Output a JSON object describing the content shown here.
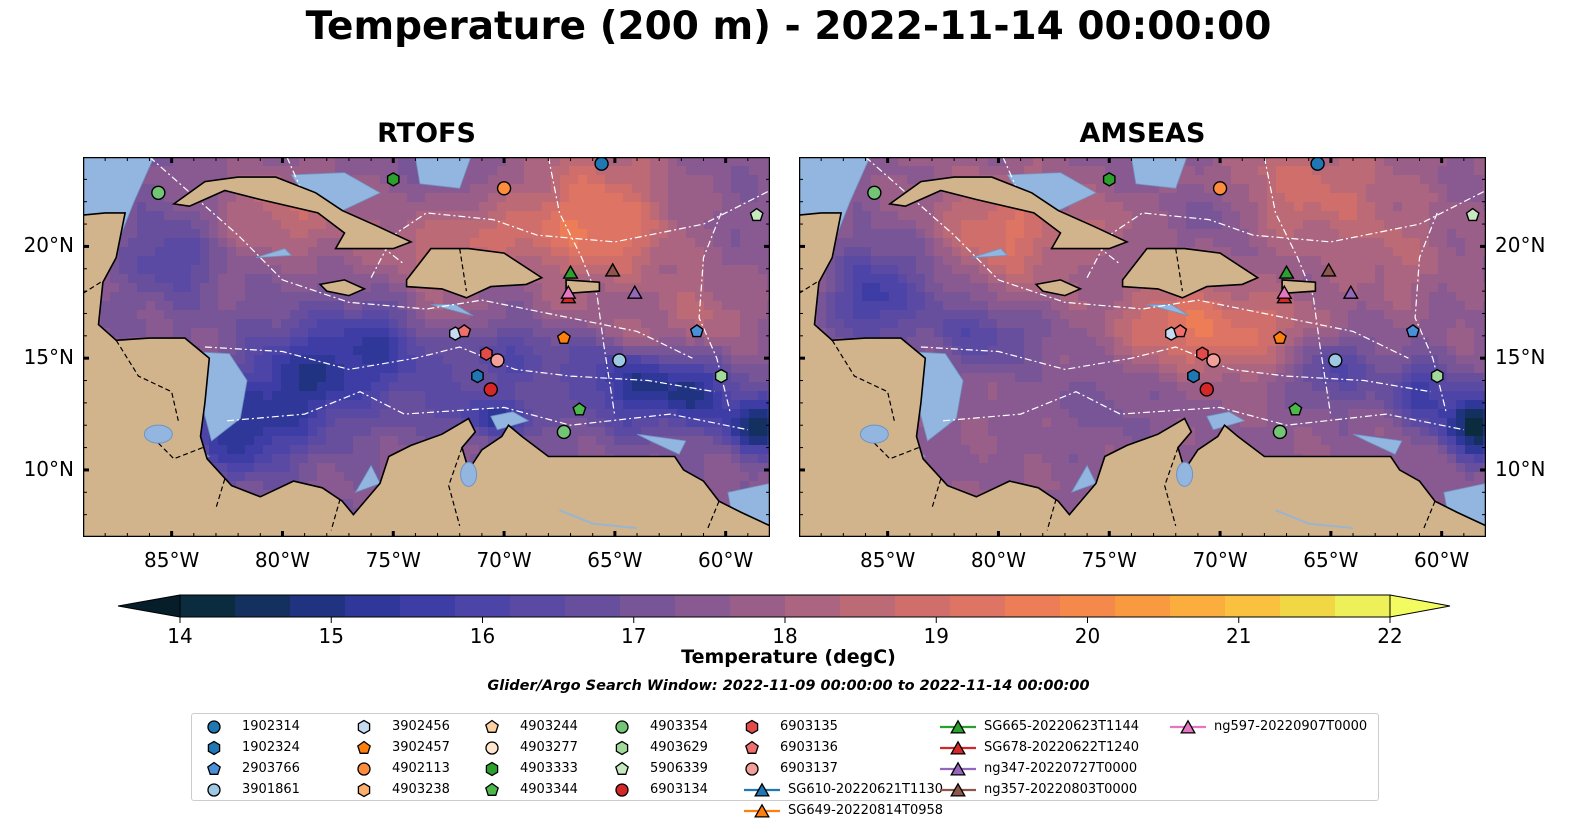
{
  "title": "Temperature (200 m) - 2022-11-14 00:00:00",
  "panels": [
    {
      "title": "RTOFS",
      "variant": "rtofs"
    },
    {
      "title": "AMSEAS",
      "variant": "amseas"
    }
  ],
  "axes": {
    "lon_ticks": [
      "85°W",
      "80°W",
      "75°W",
      "70°W",
      "65°W",
      "60°W"
    ],
    "lon_values": [
      -85,
      -80,
      -75,
      -70,
      -65,
      -60
    ],
    "lat_ticks": [
      "20°N",
      "15°N",
      "10°N"
    ],
    "lat_values": [
      20,
      15,
      10
    ],
    "lon_range": [
      -89,
      -58
    ],
    "lat_range": [
      7,
      24
    ]
  },
  "colorbar": {
    "label": "Temperature (degC)",
    "ticks": [
      "14",
      "15",
      "16",
      "17",
      "18",
      "19",
      "20",
      "21",
      "22"
    ],
    "tick_values": [
      14,
      15,
      16,
      17,
      18,
      19,
      20,
      21,
      22
    ],
    "range": [
      14,
      22
    ],
    "step": 0.5,
    "colors": [
      "#0b2c3e",
      "#13305f",
      "#1f3381",
      "#2f3799",
      "#3e3da6",
      "#4c44a7",
      "#5a4aa4",
      "#684f9e",
      "#775597",
      "#885a91",
      "#995f88",
      "#ab6580",
      "#bd6a77",
      "#cf6e6b",
      "#de7463",
      "#ec7d57",
      "#f5894b",
      "#f99a40",
      "#fbad3d",
      "#f9c13f",
      "#f2d744",
      "#eef05a"
    ],
    "extend_low_color": "#061e2a",
    "extend_high_color": "#f2fb60"
  },
  "search_window": "Glider/Argo Search Window: 2022-11-09 00:00:00 to 2022-11-14 00:00:00",
  "legend": {
    "items": [
      {
        "label": "1902314",
        "marker": "circle",
        "color": "#1f77b4"
      },
      {
        "label": "1902324",
        "marker": "hexagon",
        "color": "#1f77b4"
      },
      {
        "label": "2903766",
        "marker": "pentagon",
        "color": "#4a90d9"
      },
      {
        "label": "3901861",
        "marker": "circle",
        "color": "#9ecae1"
      },
      {
        "label": "3902456",
        "marker": "hexagon",
        "color": "#c6dbef"
      },
      {
        "label": "3902457",
        "marker": "pentagon",
        "color": "#ff7f0e"
      },
      {
        "label": "4902113",
        "marker": "circle",
        "color": "#fd8d3c"
      },
      {
        "label": "4903238",
        "marker": "hexagon",
        "color": "#fdae6b"
      },
      {
        "label": "4903244",
        "marker": "pentagon",
        "color": "#fdd0a2"
      },
      {
        "label": "4903277",
        "marker": "circle",
        "color": "#fee6ce"
      },
      {
        "label": "4903333",
        "marker": "hexagon",
        "color": "#2ca02c"
      },
      {
        "label": "4903344",
        "marker": "pentagon",
        "color": "#4cb84c"
      },
      {
        "label": "4903354",
        "marker": "circle",
        "color": "#74c476"
      },
      {
        "label": "4903629",
        "marker": "hexagon",
        "color": "#a1d99b"
      },
      {
        "label": "5906339",
        "marker": "pentagon",
        "color": "#c7e9c0"
      },
      {
        "label": "6903134",
        "marker": "circle",
        "color": "#d62728"
      },
      {
        "label": "6903135",
        "marker": "hexagon",
        "color": "#e34a4a"
      },
      {
        "label": "6903136",
        "marker": "pentagon",
        "color": "#ef6f6f"
      },
      {
        "label": "6903137",
        "marker": "circle",
        "color": "#f4a09a"
      },
      {
        "label": "SG610-20220621T1130",
        "marker": "triangle-line",
        "color": "#1f77b4"
      },
      {
        "label": "SG649-20220814T0958",
        "marker": "triangle-line",
        "color": "#ff7f0e"
      },
      {
        "label": "SG665-20220623T1144",
        "marker": "triangle-line",
        "color": "#2ca02c"
      },
      {
        "label": "SG678-20220622T1240",
        "marker": "triangle-line",
        "color": "#d62728"
      },
      {
        "label": "ng347-20220727T0000",
        "marker": "triangle-line",
        "color": "#9467bd"
      },
      {
        "label": "ng357-20220803T0000",
        "marker": "triangle-line",
        "color": "#8c564b"
      },
      {
        "label": "ng597-20220907T0000",
        "marker": "triangle-line",
        "color": "#e377c2"
      }
    ]
  },
  "observations": [
    {
      "id": "1902314",
      "lon": -65.6,
      "lat": 23.7
    },
    {
      "id": "4902113",
      "lon": -70.0,
      "lat": 22.6
    },
    {
      "id": "4903354",
      "lon": -85.6,
      "lat": 22.4
    },
    {
      "id": "4903333",
      "lon": -75.0,
      "lat": 23.0
    },
    {
      "id": "5906339",
      "lon": -58.6,
      "lat": 21.4
    },
    {
      "id": "SG665-20220623T1144",
      "lon": -67.0,
      "lat": 18.8
    },
    {
      "id": "ng357-20220803T0000",
      "lon": -65.1,
      "lat": 18.9
    },
    {
      "id": "SG678-20220622T1240",
      "lon": -67.1,
      "lat": 17.7
    },
    {
      "id": "ng597-20220907T0000",
      "lon": -67.1,
      "lat": 17.9
    },
    {
      "id": "ng347-20220727T0000",
      "lon": -64.1,
      "lat": 17.9
    },
    {
      "id": "3902456",
      "lon": -72.2,
      "lat": 16.1
    },
    {
      "id": "6903136",
      "lon": -71.8,
      "lat": 16.2
    },
    {
      "id": "3902457",
      "lon": -67.3,
      "lat": 15.9
    },
    {
      "id": "2903766",
      "lon": -61.3,
      "lat": 16.2
    },
    {
      "id": "6903135",
      "lon": -70.8,
      "lat": 15.2
    },
    {
      "id": "6903137",
      "lon": -70.3,
      "lat": 14.9
    },
    {
      "id": "3901861",
      "lon": -64.8,
      "lat": 14.9
    },
    {
      "id": "1902324",
      "lon": -71.2,
      "lat": 14.2
    },
    {
      "id": "4903629",
      "lon": -60.2,
      "lat": 14.2
    },
    {
      "id": "6903134",
      "lon": -70.6,
      "lat": 13.6
    },
    {
      "id": "4903344",
      "lon": -66.6,
      "lat": 12.7
    },
    {
      "id": "4903354",
      "lon": -67.3,
      "lat": 11.7
    }
  ]
}
